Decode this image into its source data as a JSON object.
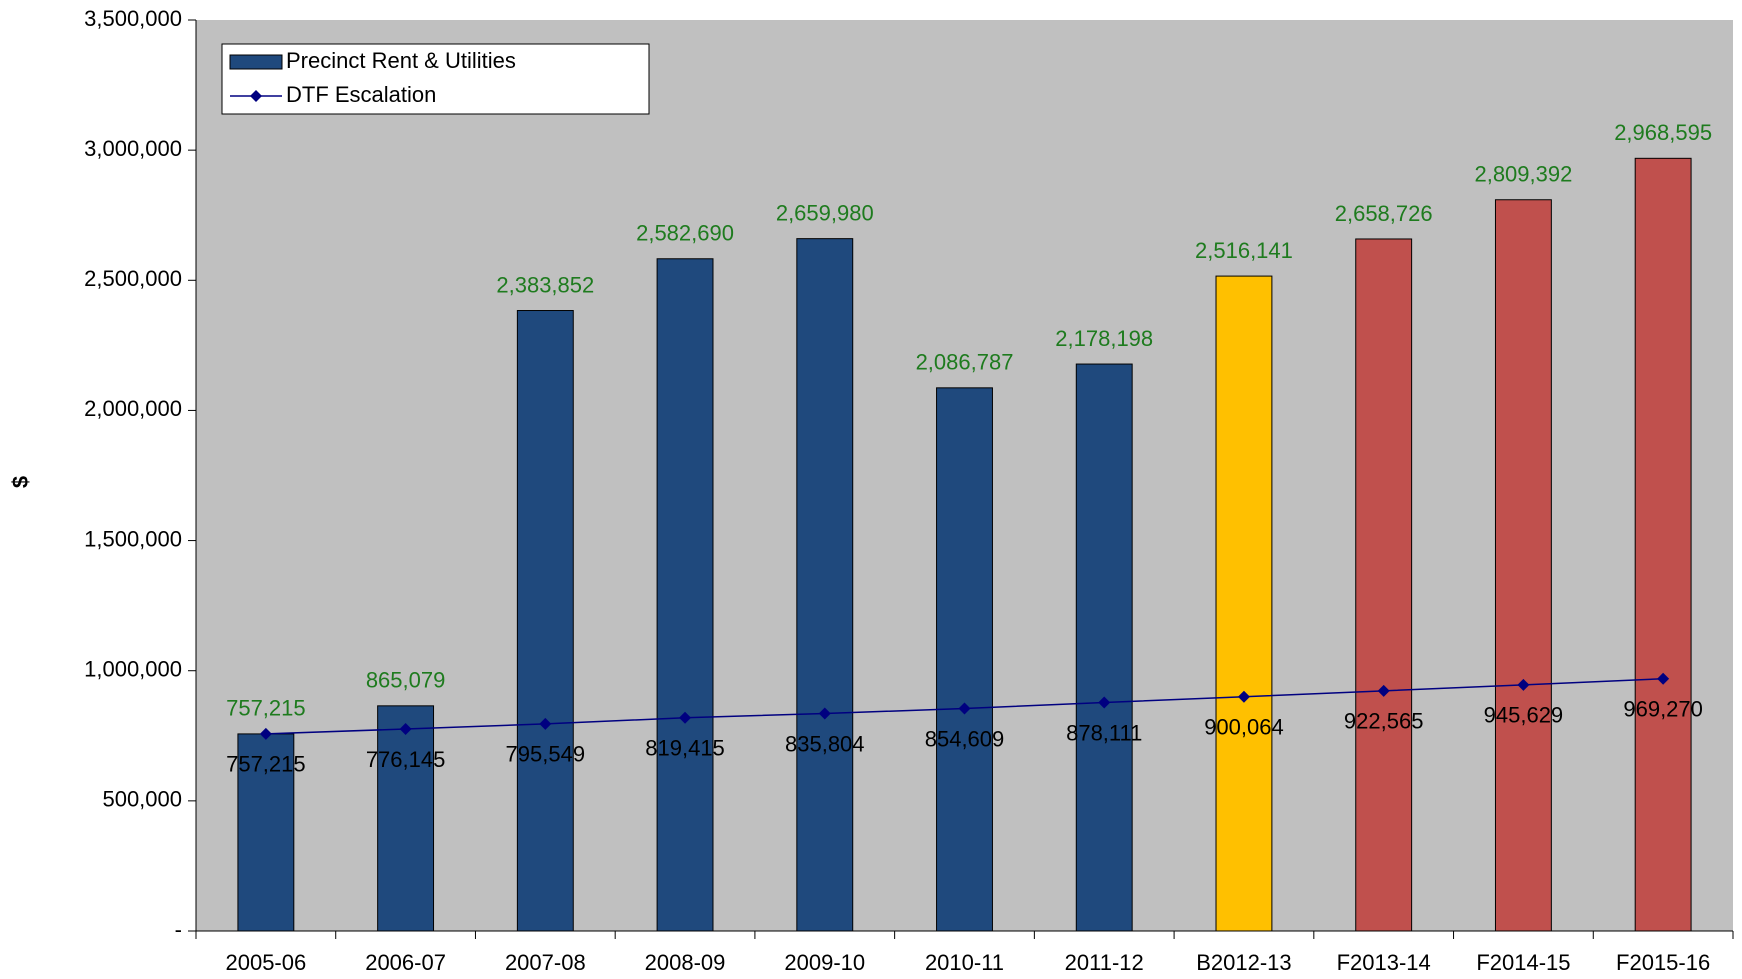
{
  "chart_data": {
    "type": "bar",
    "y_axis_label": "$",
    "categories": [
      "2005-06",
      "2006-07",
      "2007-08",
      "2008-09",
      "2009-10",
      "2010-11",
      "2011-12",
      "B2012-13",
      "F2013-14",
      "F2014-15",
      "F2015-16"
    ],
    "series": [
      {
        "name": "Precinct Rent & Utilities",
        "type": "bar",
        "color": "#1F497D",
        "colors": [
          "#1F497D",
          "#1F497D",
          "#1F497D",
          "#1F497D",
          "#1F497D",
          "#1F497D",
          "#1F497D",
          "#FFC000",
          "#C0504D",
          "#C0504D",
          "#C0504D"
        ],
        "label_color": "#1E7B1E",
        "values": [
          757215,
          865079,
          2383852,
          2582690,
          2659980,
          2086787,
          2178198,
          2516141,
          2658726,
          2809392,
          2968595
        ],
        "value_labels": [
          "757,215",
          "865,079",
          "2,383,852",
          "2,582,690",
          "2,659,980",
          "2,086,787",
          "2,178,198",
          "2,516,141",
          "2,658,726",
          "2,809,392",
          "2,968,595"
        ]
      },
      {
        "name": "DTF Escalation",
        "type": "line",
        "color": "#000080",
        "label_color": "#000000",
        "values": [
          757215,
          776145,
          795549,
          819415,
          835804,
          854609,
          878111,
          900064,
          922565,
          945629,
          969270
        ],
        "value_labels": [
          "757,215",
          "776,145",
          "795,549",
          "819,415",
          "835,804",
          "854,609",
          "878,111",
          "900,064",
          "922,565",
          "945,629",
          "969,270"
        ]
      }
    ],
    "ylim": [
      0,
      3500000
    ],
    "yticks": [
      {
        "value": 0,
        "label": "-"
      },
      {
        "value": 500000,
        "label": "500,000"
      },
      {
        "value": 1000000,
        "label": "1,000,000"
      },
      {
        "value": 1500000,
        "label": "1,500,000"
      },
      {
        "value": 2000000,
        "label": "2,000,000"
      },
      {
        "value": 2500000,
        "label": "2,500,000"
      },
      {
        "value": 3000000,
        "label": "3,000,000"
      },
      {
        "value": 3500000,
        "label": "3,500,000"
      }
    ],
    "legend": "upper left",
    "plot_background": "#C0C0C0"
  }
}
